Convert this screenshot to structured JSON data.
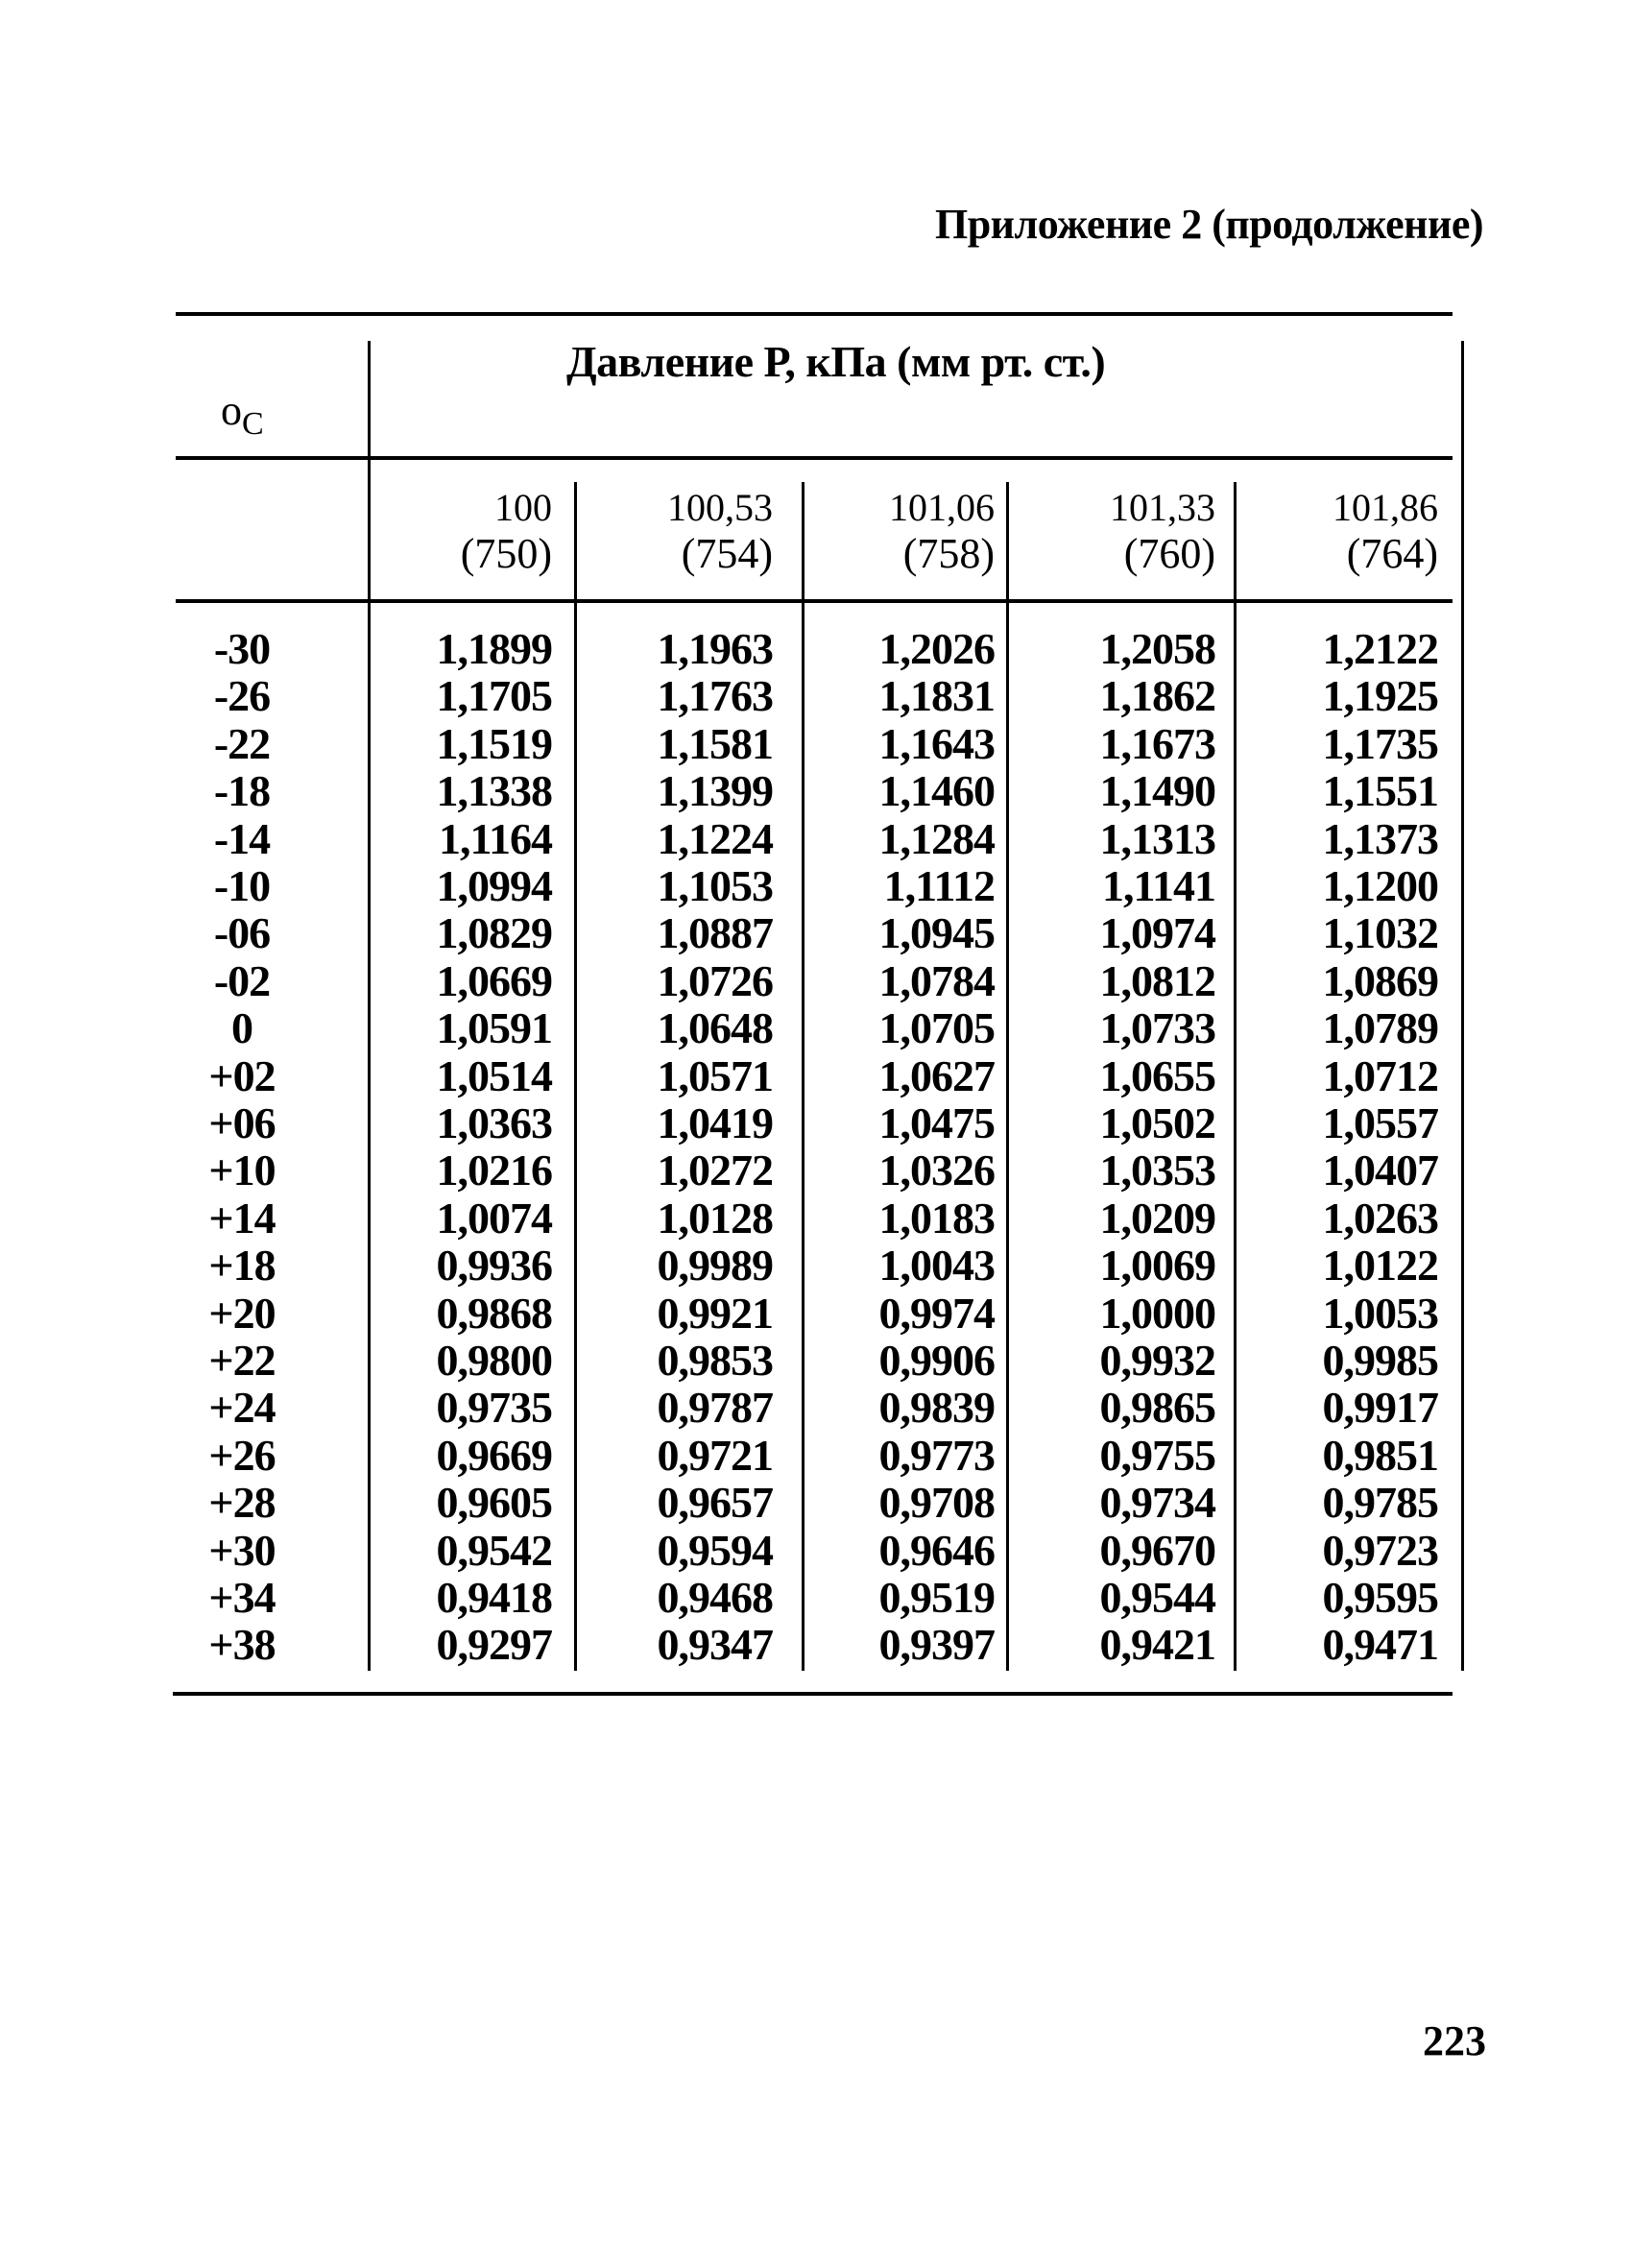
{
  "header": {
    "title": "Приложение 2 (продолжение)"
  },
  "table": {
    "unit_label": "o",
    "unit_sub": "C",
    "group_header": "Давление Р, кПа (мм рт. ст.)",
    "columns": [
      {
        "kpa": "100",
        "mmhg": "(750)"
      },
      {
        "kpa": "100,53",
        "mmhg": "(754)"
      },
      {
        "kpa": "101,06",
        "mmhg": "(758)"
      },
      {
        "kpa": "101,33",
        "mmhg": "(760)"
      },
      {
        "kpa": "101,86",
        "mmhg": "(764)"
      }
    ],
    "rows": [
      {
        "t": "-30",
        "v": [
          "1,1899",
          "1,1963",
          "1,2026",
          "1,2058",
          "1,2122"
        ]
      },
      {
        "t": "-26",
        "v": [
          "1,1705",
          "1,1763",
          "1,1831",
          "1,1862",
          "1,1925"
        ]
      },
      {
        "t": "-22",
        "v": [
          "1,1519",
          "1,1581",
          "1,1643",
          "1,1673",
          "1,1735"
        ]
      },
      {
        "t": "-18",
        "v": [
          "1,1338",
          "1,1399",
          "1,1460",
          "1,1490",
          "1,1551"
        ]
      },
      {
        "t": "-14",
        "v": [
          "1,1164",
          "1,1224",
          "1,1284",
          "1,1313",
          "1,1373"
        ]
      },
      {
        "t": "-10",
        "v": [
          "1,0994",
          "1,1053",
          "1,1112",
          "1,1141",
          "1,1200"
        ]
      },
      {
        "t": "-06",
        "v": [
          "1,0829",
          "1,0887",
          "1,0945",
          "1,0974",
          "1,1032"
        ]
      },
      {
        "t": "-02",
        "v": [
          "1,0669",
          "1,0726",
          "1,0784",
          "1,0812",
          "1,0869"
        ]
      },
      {
        "t": "0",
        "v": [
          "1,0591",
          "1,0648",
          "1,0705",
          "1,0733",
          "1,0789"
        ]
      },
      {
        "t": "+02",
        "v": [
          "1,0514",
          "1,0571",
          "1,0627",
          "1,0655",
          "1,0712"
        ]
      },
      {
        "t": "+06",
        "v": [
          "1,0363",
          "1,0419",
          "1,0475",
          "1,0502",
          "1,0557"
        ]
      },
      {
        "t": "+10",
        "v": [
          "1,0216",
          "1,0272",
          "1,0326",
          "1,0353",
          "1,0407"
        ]
      },
      {
        "t": "+14",
        "v": [
          "1,0074",
          "1,0128",
          "1,0183",
          "1,0209",
          "1,0263"
        ]
      },
      {
        "t": "+18",
        "v": [
          "0,9936",
          "0,9989",
          "1,0043",
          "1,0069",
          "1,0122"
        ]
      },
      {
        "t": "+20",
        "v": [
          "0,9868",
          "0,9921",
          "0,9974",
          "1,0000",
          "1,0053"
        ]
      },
      {
        "t": "+22",
        "v": [
          "0,9800",
          "0,9853",
          "0,9906",
          "0,9932",
          "0,9985"
        ]
      },
      {
        "t": "+24",
        "v": [
          "0,9735",
          "0,9787",
          "0,9839",
          "0,9865",
          "0,9917"
        ]
      },
      {
        "t": "+26",
        "v": [
          "0,9669",
          "0,9721",
          "0,9773",
          "0,9755",
          "0,9851"
        ]
      },
      {
        "t": "+28",
        "v": [
          "0,9605",
          "0,9657",
          "0,9708",
          "0,9734",
          "0,9785"
        ]
      },
      {
        "t": "+30",
        "v": [
          "0,9542",
          "0,9594",
          "0,9646",
          "0,9670",
          "0,9723"
        ]
      },
      {
        "t": "+34",
        "v": [
          "0,9418",
          "0,9468",
          "0,9519",
          "0,9544",
          "0,9595"
        ]
      },
      {
        "t": "+38",
        "v": [
          "0,9297",
          "0,9347",
          "0,9397",
          "0,9421",
          "0,9471"
        ]
      }
    ]
  },
  "footer": {
    "page_number": "223"
  }
}
